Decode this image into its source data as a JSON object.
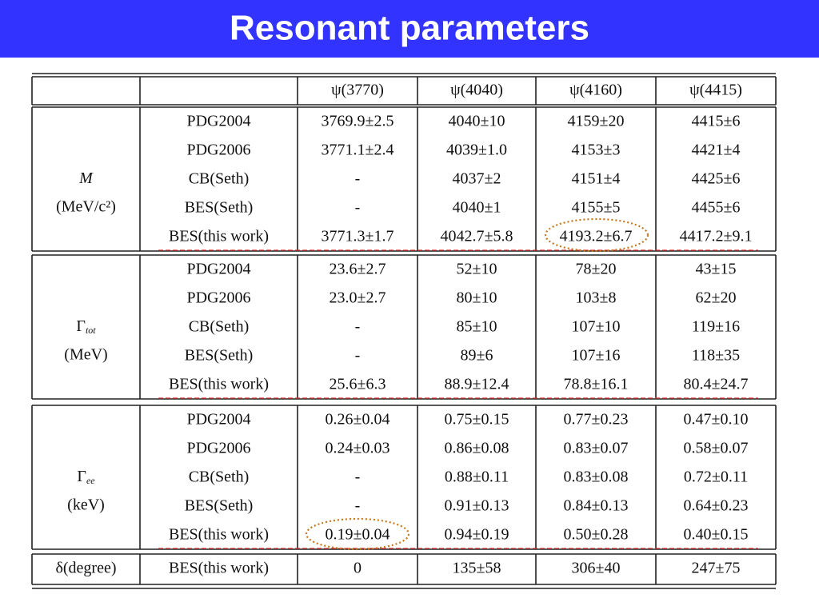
{
  "header": {
    "title": "Resonant parameters"
  },
  "table": {
    "columns": [
      "ψ(3770)",
      "ψ(4040)",
      "ψ(4160)",
      "ψ(4415)"
    ],
    "groups": [
      {
        "symbol": "M",
        "unit": "(MeV/c²)",
        "rows": [
          {
            "source": "PDG2004",
            "values": [
              "3769.9±2.5",
              "4040±10",
              "4159±20",
              "4415±6"
            ]
          },
          {
            "source": "PDG2006",
            "values": [
              "3771.1±2.4",
              "4039±1.0",
              "4153±3",
              "4421±4"
            ]
          },
          {
            "source": "CB(Seth)",
            "values": [
              "-",
              "4037±2",
              "4151±4",
              "4425±6"
            ]
          },
          {
            "source": "BES(Seth)",
            "values": [
              "-",
              "4040±1",
              "4155±5",
              "4455±6"
            ]
          },
          {
            "source": "BES(this work)",
            "values": [
              "3771.3±1.7",
              "4042.7±5.8",
              "4193.2±6.7",
              "4417.2±9.1"
            ]
          }
        ]
      },
      {
        "symbol": "Γ",
        "subscript": "tot",
        "unit": "(MeV)",
        "rows": [
          {
            "source": "PDG2004",
            "values": [
              "23.6±2.7",
              "52±10",
              "78±20",
              "43±15"
            ]
          },
          {
            "source": "PDG2006",
            "values": [
              "23.0±2.7",
              "80±10",
              "103±8",
              "62±20"
            ]
          },
          {
            "source": "CB(Seth)",
            "values": [
              "-",
              "85±10",
              "107±10",
              "119±16"
            ]
          },
          {
            "source": "BES(Seth)",
            "values": [
              "-",
              "89±6",
              "107±16",
              "118±35"
            ]
          },
          {
            "source": "BES(this work)",
            "values": [
              "25.6±6.3",
              "88.9±12.4",
              "78.8±16.1",
              "80.4±24.7"
            ]
          }
        ]
      },
      {
        "symbol": "Γ",
        "subscript": "ee",
        "unit": "(keV)",
        "rows": [
          {
            "source": "PDG2004",
            "values": [
              "0.26±0.04",
              "0.75±0.15",
              "0.77±0.23",
              "0.47±0.10"
            ]
          },
          {
            "source": "PDG2006",
            "values": [
              "0.24±0.03",
              "0.86±0.08",
              "0.83±0.07",
              "0.58±0.07"
            ]
          },
          {
            "source": "CB(Seth)",
            "values": [
              "-",
              "0.88±0.11",
              "0.83±0.08",
              "0.72±0.11"
            ]
          },
          {
            "source": "BES(Seth)",
            "values": [
              "-",
              "0.91±0.13",
              "0.84±0.13",
              "0.64±0.23"
            ]
          },
          {
            "source": "BES(this work)",
            "values": [
              "0.19±0.04",
              "0.94±0.19",
              "0.50±0.28",
              "0.40±0.15"
            ]
          }
        ]
      }
    ],
    "last_row": {
      "label": "δ(degree)",
      "source": "BES(this work)",
      "values": [
        "0",
        "135±58",
        "306±40",
        "247±75"
      ]
    }
  }
}
